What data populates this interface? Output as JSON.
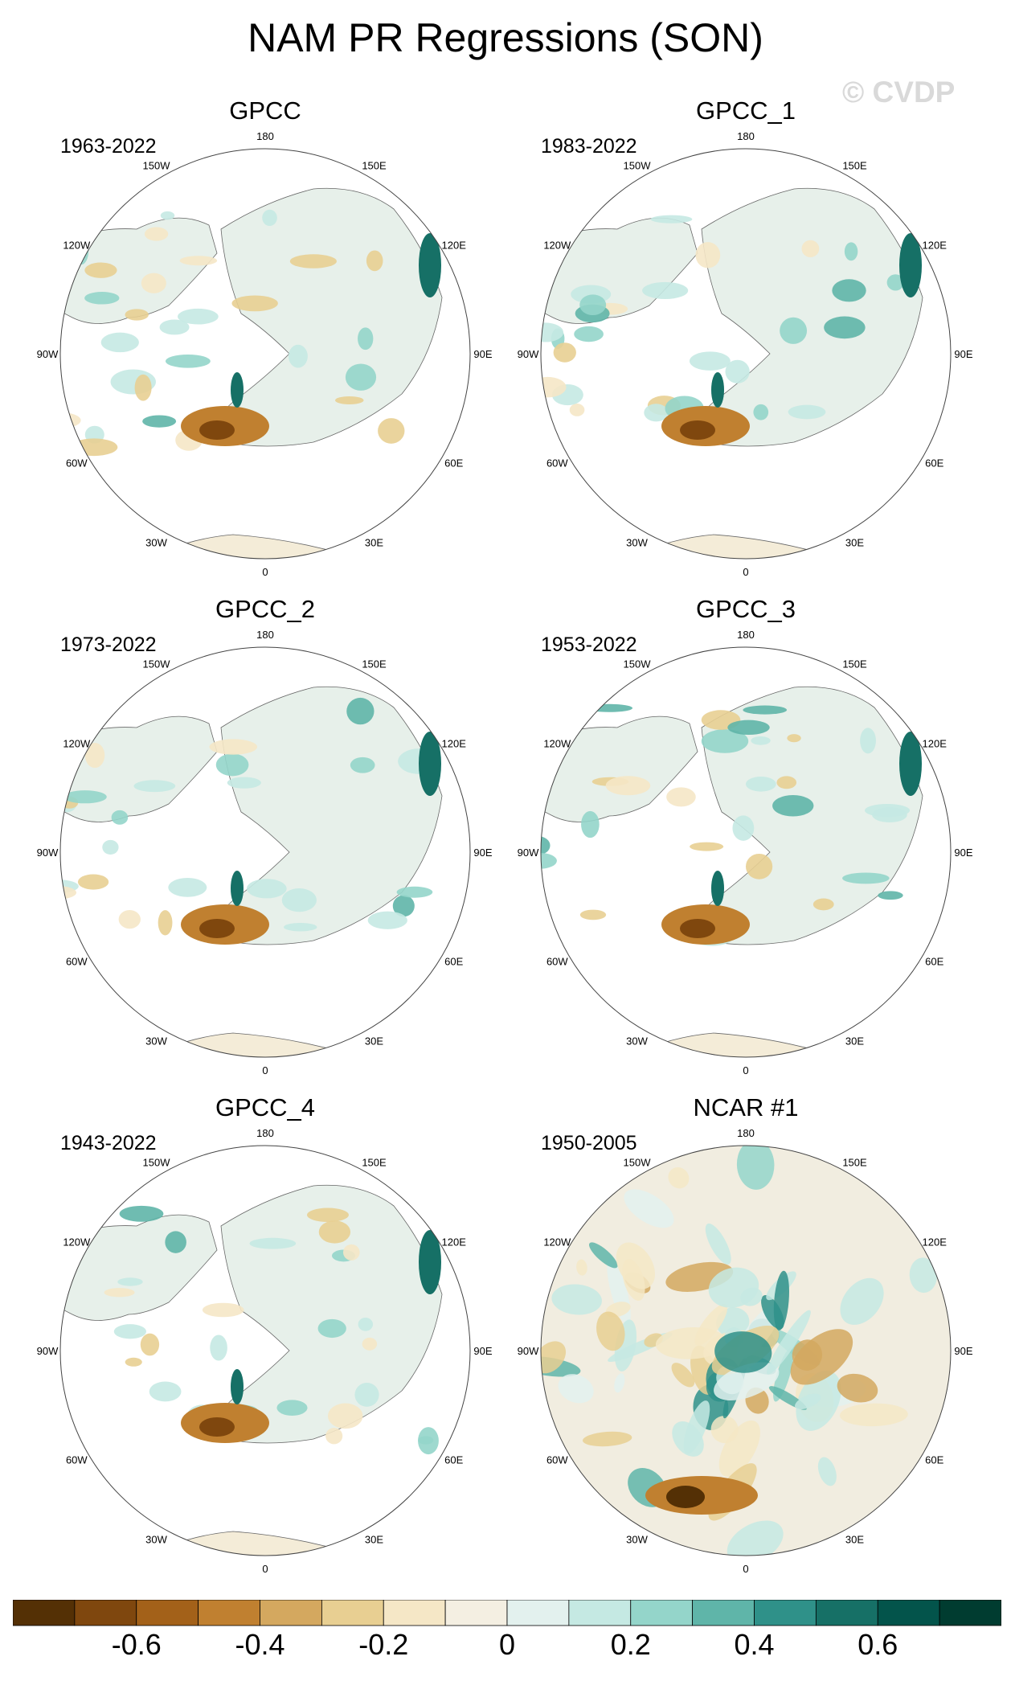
{
  "title": "NAM PR Regressions (SON)",
  "watermark": "© CVDP",
  "chart_data": {
    "type": "map",
    "projection": "north-polar-stereographic",
    "variable": "PR regression on NAM",
    "season": "SON",
    "longitude_labels": [
      "180",
      "150E",
      "120E",
      "90E",
      "60E",
      "30E",
      "0",
      "30W",
      "60W",
      "90W",
      "120W",
      "150W"
    ],
    "panels": [
      {
        "name": "GPCC",
        "years": "1963-2022",
        "coverage": "land"
      },
      {
        "name": "GPCC_1",
        "years": "1983-2022",
        "coverage": "land"
      },
      {
        "name": "GPCC_2",
        "years": "1973-2022",
        "coverage": "land"
      },
      {
        "name": "GPCC_3",
        "years": "1953-2022",
        "coverage": "land"
      },
      {
        "name": "GPCC_4",
        "years": "1943-2022",
        "coverage": "land"
      },
      {
        "name": "NCAR #1",
        "years": "1950-2005",
        "coverage": "global"
      }
    ],
    "colorbar": {
      "levels": [
        -0.7,
        -0.6,
        -0.5,
        -0.4,
        -0.3,
        -0.2,
        -0.1,
        0,
        0.1,
        0.2,
        0.3,
        0.4,
        0.5,
        0.6,
        0.7
      ],
      "colors": [
        "#543005",
        "#7f470e",
        "#a36119",
        "#c08030",
        "#d4a85f",
        "#e8cf92",
        "#f5e7c6",
        "#f4efe2",
        "#e3f1ee",
        "#c5e9e3",
        "#94d5ca",
        "#5fb5a9",
        "#2f9189",
        "#167066",
        "#03544b",
        "#003c30"
      ],
      "tick_labels": [
        "-0.6",
        "-0.4",
        "-0.2",
        "0",
        "0.2",
        "0.4",
        "0.6"
      ]
    }
  }
}
